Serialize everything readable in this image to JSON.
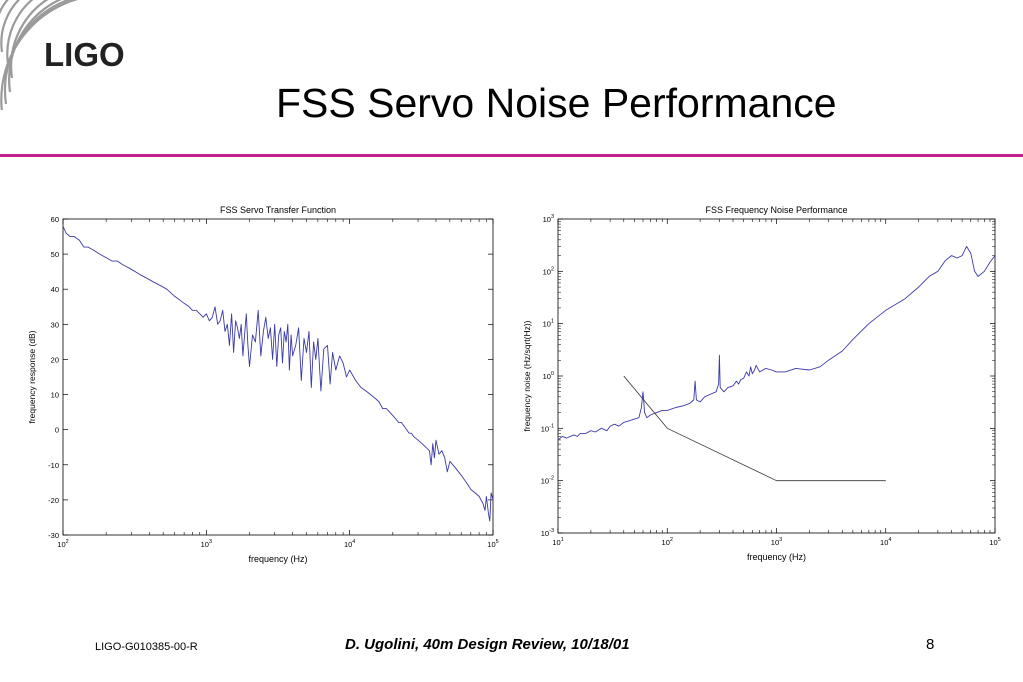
{
  "logo": {
    "text": "LIGO"
  },
  "slide_title": "FSS Servo Noise Performance",
  "footer": {
    "doc_id": "LIGO-G010385-00-R",
    "citation": "D. Ugolini, 40m Design Review, 10/18/01",
    "page_number": "8"
  },
  "colors": {
    "accent_rule": "#c41e8c",
    "trace": "#3a3aa8",
    "reference_line": "#333333"
  },
  "chart_data": [
    {
      "type": "line",
      "title": "FSS Servo Transfer Function",
      "xlabel": "frequency (Hz)",
      "ylabel": "frequency response (dB)",
      "xscale": "log",
      "xlim": [
        100,
        100000
      ],
      "ylim": [
        -30,
        60
      ],
      "xticks": [
        100,
        1000,
        10000,
        100000
      ],
      "yticks": [
        60,
        50,
        40,
        30,
        20,
        10,
        0,
        -10,
        -20,
        -30
      ],
      "grid": false,
      "series": [
        {
          "x": [
            100,
            105,
            112,
            120,
            130,
            140,
            150,
            165,
            180,
            200,
            220,
            240,
            260,
            290,
            320,
            350,
            390,
            430,
            480,
            530,
            600,
            650,
            700,
            760,
            800,
            850,
            900,
            950,
            1000,
            1050,
            1100,
            1150,
            1200,
            1250,
            1300,
            1350,
            1400,
            1450,
            1500,
            1550,
            1600,
            1650,
            1700,
            1750,
            1800,
            1850,
            1900,
            1950,
            2000,
            2100,
            2200,
            2300,
            2400,
            2500,
            2600,
            2700,
            2800,
            2900,
            3000,
            3100,
            3200,
            3300,
            3400,
            3500,
            3600,
            3700,
            3800,
            3900,
            4000,
            4200,
            4400,
            4600,
            4800,
            5000,
            5200,
            5400,
            5600,
            5800,
            6000,
            6300,
            6600,
            7000,
            7300,
            7600,
            8000,
            8500,
            9000,
            9500,
            10000,
            11000,
            12000,
            13000,
            14000,
            15000,
            16000,
            17000,
            18000,
            19000,
            20000,
            21000,
            22000,
            23000,
            24000,
            25000,
            26000,
            27000,
            28000,
            30000,
            32000,
            34000,
            36000,
            37000,
            38000,
            39000,
            40000,
            42000,
            44000,
            46000,
            48000,
            50000,
            55000,
            60000,
            65000,
            70000,
            75000,
            80000,
            85000,
            88000,
            90000,
            93000,
            95000,
            97000,
            100000
          ],
          "values": [
            58,
            56,
            55,
            55,
            54,
            52,
            52,
            51,
            50,
            49,
            48,
            48,
            47,
            46,
            45,
            44,
            43,
            42,
            41,
            40,
            38,
            37,
            36,
            35,
            34,
            34,
            33,
            32,
            33,
            31,
            32,
            35,
            30,
            31,
            34,
            28,
            30,
            24,
            33,
            22,
            31,
            29,
            26,
            30,
            21,
            27,
            33,
            24,
            18,
            27,
            25,
            34,
            21,
            28,
            32,
            26,
            29,
            20,
            30,
            18,
            27,
            29,
            19,
            28,
            25,
            30,
            17,
            27,
            21,
            24,
            29,
            14,
            26,
            22,
            28,
            12,
            25,
            20,
            26,
            11,
            23,
            24,
            13,
            22,
            17,
            21,
            19,
            15,
            17,
            14,
            12,
            11,
            10,
            9,
            8,
            6,
            6,
            5,
            4,
            3,
            2,
            2,
            1,
            0,
            -1,
            -1,
            -2,
            -3,
            -4,
            -5,
            -6,
            -10,
            -4,
            -8,
            -3,
            -7,
            -6,
            -8,
            -12,
            -9,
            -11,
            -13,
            -15,
            -17,
            -18,
            -19,
            -21,
            -23,
            -19,
            -24,
            -26,
            -18,
            -20
          ]
        }
      ]
    },
    {
      "type": "line",
      "title": "FSS Frequency Noise Performance",
      "xlabel": "frequency (Hz)",
      "ylabel": "frequency noise (Hz/sqrt(Hz))",
      "xscale": "log",
      "yscale": "log",
      "xlim": [
        10,
        100000
      ],
      "ylim": [
        0.001,
        1000
      ],
      "xticks": [
        10,
        100,
        1000,
        10000,
        100000
      ],
      "yticks": [
        1000,
        100,
        10,
        1,
        0.1,
        0.01,
        0.001
      ],
      "grid": false,
      "series": [
        {
          "x": [
            10,
            11,
            12,
            13,
            14,
            15,
            16,
            18,
            20,
            22,
            25,
            28,
            30,
            33,
            36,
            40,
            45,
            50,
            55,
            58,
            60,
            62,
            65,
            70,
            80,
            90,
            100,
            120,
            140,
            160,
            175,
            180,
            185,
            200,
            220,
            250,
            280,
            295,
            300,
            305,
            330,
            360,
            400,
            430,
            450,
            470,
            500,
            530,
            560,
            580,
            600,
            630,
            650,
            700,
            800,
            900,
            1000,
            1200,
            1500,
            2000,
            2500,
            3000,
            4000,
            5000,
            7000,
            10000,
            15000,
            20000,
            25000,
            30000,
            35000,
            40000,
            45000,
            50000,
            55000,
            60000,
            65000,
            70000,
            80000,
            90000,
            100000
          ],
          "values": [
            0.06,
            0.07,
            0.065,
            0.07,
            0.075,
            0.07,
            0.08,
            0.08,
            0.09,
            0.085,
            0.1,
            0.09,
            0.11,
            0.12,
            0.11,
            0.13,
            0.14,
            0.15,
            0.16,
            0.25,
            0.5,
            0.2,
            0.16,
            0.18,
            0.2,
            0.22,
            0.22,
            0.25,
            0.27,
            0.3,
            0.35,
            0.8,
            0.35,
            0.32,
            0.4,
            0.45,
            0.5,
            0.7,
            2.5,
            0.6,
            0.5,
            0.6,
            0.65,
            0.8,
            0.7,
            0.85,
            0.9,
            1.2,
            1.0,
            1.5,
            1.1,
            1.3,
            1.6,
            1.2,
            1.4,
            1.3,
            1.2,
            1.2,
            1.4,
            1.3,
            1.5,
            2.0,
            3.0,
            5.0,
            10,
            18,
            30,
            50,
            80,
            100,
            160,
            200,
            180,
            200,
            300,
            220,
            100,
            80,
            100,
            150,
            200
          ]
        },
        {
          "x": [
            40,
            100,
            1000,
            10000
          ],
          "values": [
            1.0,
            0.1,
            0.01,
            0.01
          ]
        }
      ]
    }
  ]
}
